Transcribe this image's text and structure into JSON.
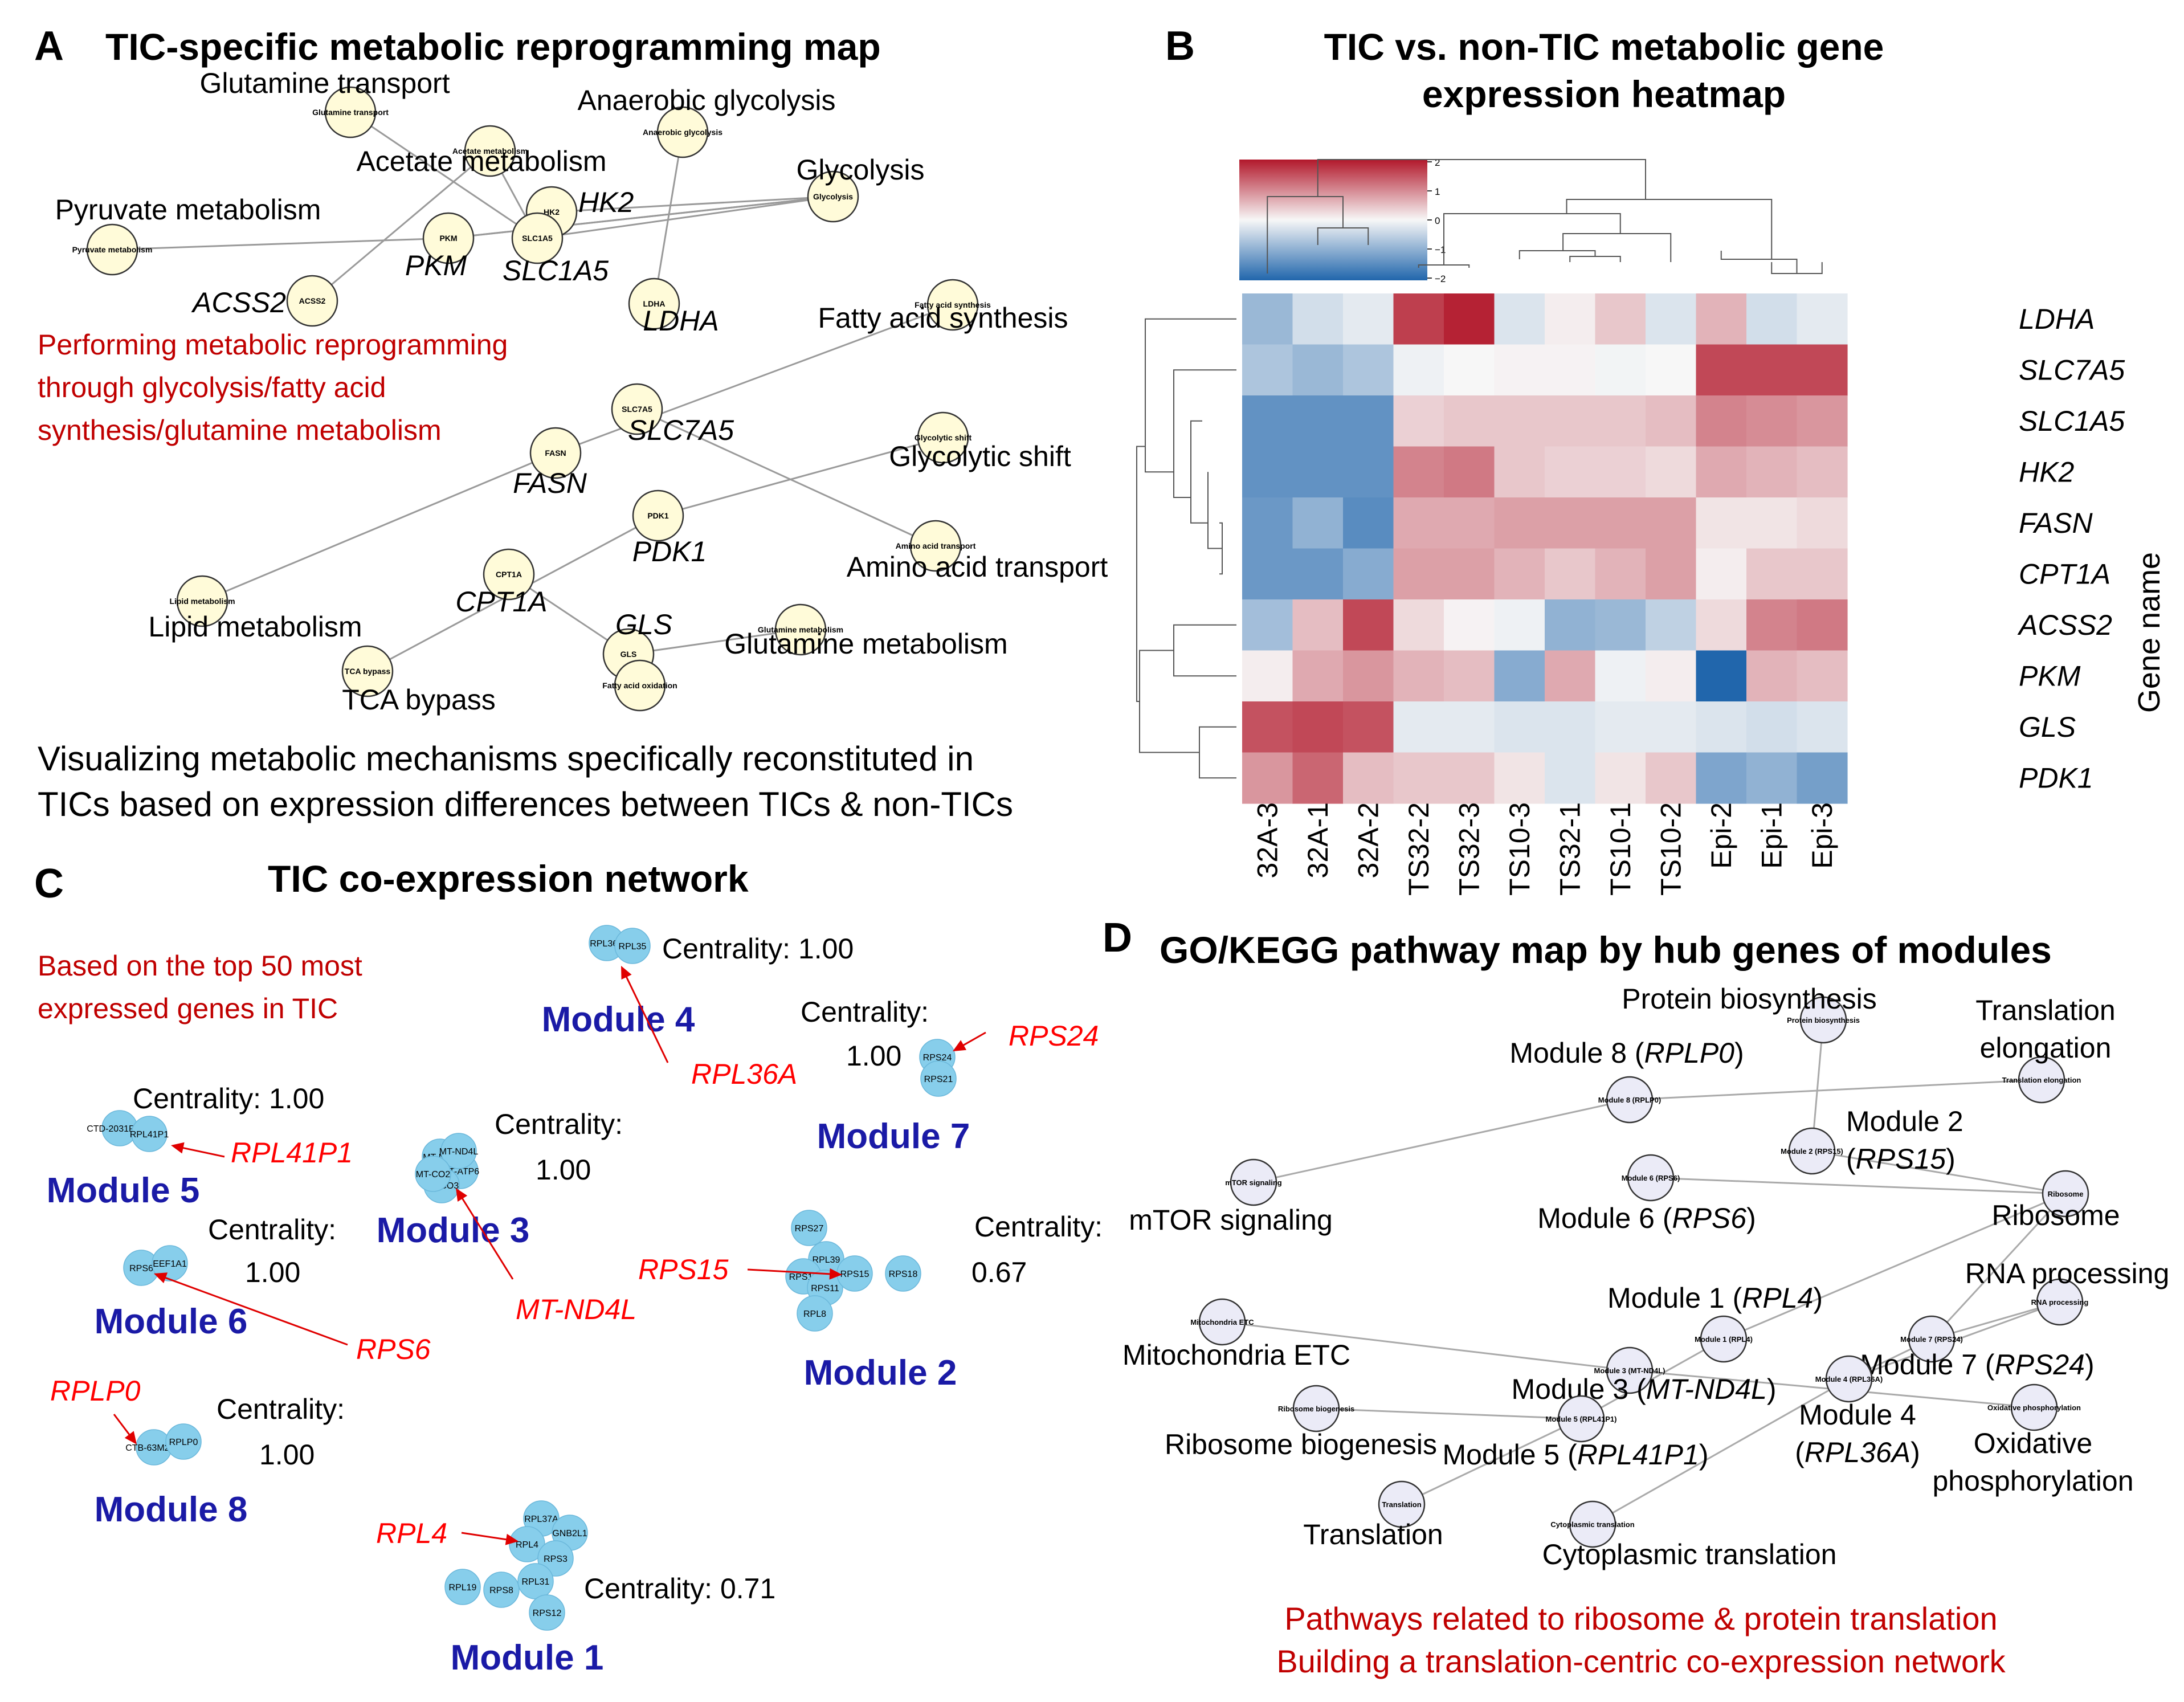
{
  "panelA": {
    "letter": "A",
    "title": "TIC-specific metabolic reprogramming map",
    "nodes": [
      {
        "id": "glutamine_transport",
        "label": "Glutamine transport",
        "small": "Glutamine transport",
        "italic": false
      },
      {
        "id": "acetate",
        "label": "Acetate metabolism",
        "small": "Acetate metabolism",
        "italic": false
      },
      {
        "id": "anaerobic",
        "label": "Anaerobic glycolysis",
        "small": "Anaerobic glycolysis",
        "italic": false
      },
      {
        "id": "glycolysis",
        "label": "Glycolysis",
        "small": "Glycolysis",
        "italic": false
      },
      {
        "id": "pyruvate",
        "label": "Pyruvate metabolism",
        "small": "Pyruvate metabolism",
        "italic": false
      },
      {
        "id": "hk2",
        "label": "HK2",
        "small": "HK2",
        "italic": true
      },
      {
        "id": "pkm",
        "label": "PKM",
        "small": "PKM",
        "italic": true
      },
      {
        "id": "slc1a5",
        "label": "SLC1A5",
        "small": "SLC1A5",
        "italic": true
      },
      {
        "id": "acss2",
        "label": "ACSS2",
        "small": "ACSS2",
        "italic": true
      },
      {
        "id": "ldha",
        "label": "LDHA",
        "small": "LDHA",
        "italic": true
      },
      {
        "id": "fas",
        "label": "Fatty acid synthesis",
        "small": "Fatty acid synthesis",
        "italic": false
      },
      {
        "id": "slc7a5",
        "label": "SLC7A5",
        "small": "SLC7A5",
        "italic": true
      },
      {
        "id": "fasn",
        "label": "FASN",
        "small": "FASN",
        "italic": true
      },
      {
        "id": "glyshift",
        "label": "Glycolytic shift",
        "small": "Glycolytic shift",
        "italic": false
      },
      {
        "id": "pdk1",
        "label": "PDK1",
        "small": "PDK1",
        "italic": true
      },
      {
        "id": "aat",
        "label": "Amino acid transport",
        "small": "Amino acid transport",
        "italic": false
      },
      {
        "id": "lipid",
        "label": "Lipid metabolism",
        "small": "Lipid metabolism",
        "italic": false
      },
      {
        "id": "cpt1a",
        "label": "CPT1A",
        "small": "CPT1A",
        "italic": true
      },
      {
        "id": "gls",
        "label": "GLS",
        "small": "GLS",
        "italic": true
      },
      {
        "id": "glnmet",
        "label": "Glutamine metabolism",
        "small": "Glutamine metabolism",
        "italic": false
      },
      {
        "id": "tca",
        "label": "TCA bypass",
        "small": "TCA bypass",
        "italic": false
      },
      {
        "id": "fao",
        "label": "",
        "small": "Fatty acid oxidation",
        "italic": false
      }
    ],
    "edges": [
      [
        "glutamine_transport",
        "slc1a5"
      ],
      [
        "acetate",
        "acss2"
      ],
      [
        "anaerobic",
        "ldha"
      ],
      [
        "glycolysis",
        "hk2"
      ],
      [
        "glycolysis",
        "pkm"
      ],
      [
        "pyruvate",
        "pkm"
      ],
      [
        "fas",
        "fasn"
      ],
      [
        "fasn",
        "lipid"
      ],
      [
        "slc7a5",
        "aat"
      ],
      [
        "glyshift",
        "pdk1"
      ],
      [
        "pdk1",
        "tca"
      ],
      [
        "cpt1a",
        "gls"
      ],
      [
        "gls",
        "glnmet"
      ]
    ],
    "red_note": [
      "Performing metabolic reprogramming",
      "through glycolysis/fatty acid",
      "synthesis/glutamine metabolism"
    ],
    "caption": [
      "Visualizing metabolic mechanisms specifically reconstituted in",
      "TICs based on expression differences between TICs & non-TICs"
    ]
  },
  "panelB": {
    "letter": "B",
    "title": [
      "TIC vs. non-TIC metabolic gene",
      "expression heatmap"
    ],
    "colorbar_ticks": [
      "2",
      "1",
      "0",
      "−1",
      "−2"
    ],
    "ylabel": "Gene name",
    "columns": [
      "32A-3",
      "32A-1",
      "32A-2",
      "TS32-2",
      "TS32-3",
      "TS10-3",
      "TS32-1",
      "TS10-1",
      "TS10-2",
      "Epi-2",
      "Epi-1",
      "Epi-3"
    ],
    "rows": [
      "LDHA",
      "SLC7A5",
      "SLC1A5",
      "HK2",
      "FASN",
      "CPT1A",
      "ACSS2",
      "PKM",
      "GLS",
      "PDK1"
    ],
    "values": [
      [
        -1.0,
        -0.4,
        -0.2,
        1.9,
        2.2,
        -0.3,
        0.1,
        0.5,
        -0.3,
        0.7,
        -0.4,
        -0.2
      ],
      [
        -0.8,
        -1.0,
        -0.8,
        -0.1,
        0.0,
        0.05,
        0.05,
        -0.05,
        0.0,
        1.8,
        1.8,
        1.8
      ],
      [
        -1.6,
        -1.6,
        -1.6,
        0.4,
        0.5,
        0.5,
        0.5,
        0.5,
        0.6,
        1.2,
        1.1,
        1.0
      ],
      [
        -1.6,
        -1.6,
        -1.6,
        1.2,
        1.3,
        0.5,
        0.4,
        0.4,
        0.3,
        0.8,
        0.7,
        0.6
      ],
      [
        -1.5,
        -1.1,
        -1.7,
        0.8,
        0.8,
        0.9,
        0.9,
        0.9,
        0.9,
        0.2,
        0.2,
        0.3
      ],
      [
        -1.5,
        -1.5,
        -1.2,
        0.9,
        0.9,
        0.7,
        0.5,
        0.7,
        0.9,
        0.1,
        0.5,
        0.5
      ],
      [
        -0.9,
        0.6,
        1.8,
        0.3,
        0.05,
        -0.1,
        -1.1,
        -1.0,
        -0.6,
        0.3,
        1.2,
        1.3
      ],
      [
        0.1,
        0.8,
        1.0,
        0.7,
        0.6,
        -1.2,
        0.8,
        -0.1,
        0.1,
        -2.3,
        0.7,
        0.6
      ],
      [
        1.7,
        1.8,
        1.7,
        -0.2,
        -0.2,
        -0.3,
        -0.3,
        -0.2,
        -0.2,
        -0.3,
        -0.4,
        -0.3
      ],
      [
        1.0,
        1.5,
        0.6,
        0.5,
        0.5,
        0.2,
        -0.3,
        0.2,
        0.5,
        -1.3,
        -1.1,
        -1.4
      ]
    ]
  },
  "panelC": {
    "letter": "C",
    "title": "TIC co-expression network",
    "red_note": [
      "Based on the top 50 most",
      "expressed genes in TIC"
    ],
    "modules": [
      {
        "id": "m4",
        "name": "Module 4",
        "centrality": "Centrality: 1.00",
        "hub": "RPL36A",
        "genes": [
          "RPL36A",
          "RPL35"
        ]
      },
      {
        "id": "m7",
        "name": "Module 7",
        "centrality_head": "Centrality:",
        "centrality_val": "1.00",
        "hub": "RPS24",
        "genes": [
          "RPS24",
          "RPS21"
        ]
      },
      {
        "id": "m5",
        "name": "Module 5",
        "centrality": "Centrality: 1.00",
        "hub": "RPL41P1",
        "genes": [
          "CTD-2031P19.4",
          "RPL41P1"
        ]
      },
      {
        "id": "m3",
        "name": "Module 3",
        "centrality_head": "Centrality:",
        "centrality_val": "1.00",
        "hub": "MT-ND4L",
        "genes": [
          "MT-ND3",
          "MT-ATP6",
          "MT-CO3",
          "MT-ND4L",
          "MT-CO2"
        ]
      },
      {
        "id": "m6",
        "name": "Module 6",
        "centrality_head": "Centrality:",
        "centrality_val": "1.00",
        "hub": "RPS6",
        "genes": [
          "RPS6",
          "EEF1A1"
        ]
      },
      {
        "id": "m2",
        "name": "Module 2",
        "centrality_head": "Centrality:",
        "centrality_val": "0.67",
        "hub": "RPS15",
        "genes": [
          "RPS27",
          "RPL39",
          "RPS12",
          "RPS11",
          "RPS15",
          "RPS18",
          "RPL8"
        ]
      },
      {
        "id": "m8",
        "name": "Module 8",
        "centrality_head": "Centrality:",
        "centrality_val": "1.00",
        "hub": "RPLP0",
        "genes": [
          "CTB-63M22.1",
          "RPLP0"
        ]
      },
      {
        "id": "m1",
        "name": "Module 1",
        "centrality": "Centrality: 0.71",
        "hub": "RPL4",
        "genes": [
          "RPL37A",
          "GNB2L1",
          "RPL4",
          "RPS3",
          "RPS8",
          "RPL31",
          "RPL19",
          "RPS12"
        ]
      }
    ]
  },
  "panelD": {
    "letter": "D",
    "title": "GO/KEGG pathway map by hub genes of modules",
    "nodes": [
      {
        "id": "protbio",
        "small": "Protein biosynthesis",
        "label": [
          "Protein biosynthesis"
        ]
      },
      {
        "id": "transel",
        "small": "Translation elongation",
        "label": [
          "Translation",
          "elongation"
        ]
      },
      {
        "id": "mod8",
        "small": "Module 8 (RPLP0)",
        "label_pre": "Module 8 (",
        "label_it": "RPLP0",
        "label_post": ")"
      },
      {
        "id": "mod2",
        "small": "Module 2 (RPS15)",
        "label_pre": "Module 2",
        "label2_pre": "(",
        "label_it": "RPS15",
        "label_post": ")"
      },
      {
        "id": "mtor",
        "small": "mTOR signaling",
        "label": [
          "mTOR signaling"
        ]
      },
      {
        "id": "mod6",
        "small": "Module 6 (RPS6)",
        "label_pre": "Module 6 (",
        "label_it": "RPS6",
        "label_post": ")"
      },
      {
        "id": "ribosome",
        "small": "Ribosome",
        "label": [
          "Ribosome"
        ]
      },
      {
        "id": "rnaproc",
        "small": "RNA processing",
        "label": [
          "RNA processing"
        ]
      },
      {
        "id": "mod1",
        "small": "Module 1 (RPL4)",
        "label_pre": "Module 1 (",
        "label_it": "RPL4",
        "label_post": ")"
      },
      {
        "id": "mitoetc",
        "small": "Mitochondria ETC",
        "label": [
          "Mitochondria ETC"
        ]
      },
      {
        "id": "mod3",
        "small": "Module 3 (MT-ND4L)",
        "label_pre": "Module 3 (",
        "label_it": "MT-ND4L",
        "label_post": ")"
      },
      {
        "id": "mod7",
        "small": "Module 7 (RPS24)",
        "label_pre": "Module 7 (",
        "label_it": "RPS24",
        "label_post": ")"
      },
      {
        "id": "mod4",
        "small": "Module 4 (RPL36A)",
        "label_pre": "Module 4",
        "label2_pre": "(",
        "label_it": "RPL36A",
        "label_post": ")"
      },
      {
        "id": "riboBio",
        "small": "Ribosome biogenesis",
        "label": [
          "Ribosome biogenesis"
        ]
      },
      {
        "id": "mod5",
        "small": "Module 5 (RPL41P1)",
        "label_pre": "Module 5 (",
        "label_it": "RPL41P1",
        "label_post": ")"
      },
      {
        "id": "oxphos",
        "small": "Oxidative phosphorylation",
        "label": [
          "Oxidative",
          "phosphorylation"
        ]
      },
      {
        "id": "translation",
        "small": "Translation",
        "label": [
          "Translation"
        ]
      },
      {
        "id": "cyto",
        "small": "Cytoplasmic translation",
        "label": [
          "Cytoplasmic translation"
        ]
      }
    ],
    "edges": [
      [
        "protbio",
        "mod2"
      ],
      [
        "transel",
        "mod8"
      ],
      [
        "mtor",
        "mod8"
      ],
      [
        "mod6",
        "ribosome"
      ],
      [
        "mod2",
        "ribosome"
      ],
      [
        "ribosome",
        "mod1"
      ],
      [
        "mitoetc",
        "mod3"
      ],
      [
        "mod3",
        "oxphos"
      ],
      [
        "rnaproc",
        "mod7"
      ],
      [
        "mod7",
        "mod4"
      ],
      [
        "mod4",
        "cyto"
      ],
      [
        "rnaproc",
        "mod4"
      ],
      [
        "ribosome",
        "mod7"
      ],
      [
        "riboBio",
        "mod5"
      ],
      [
        "mod5",
        "mod1"
      ],
      [
        "mod5",
        "translation"
      ]
    ],
    "red_note": [
      "Pathways related to ribosome & protein translation",
      "Building a translation-centric co-expression network"
    ]
  }
}
